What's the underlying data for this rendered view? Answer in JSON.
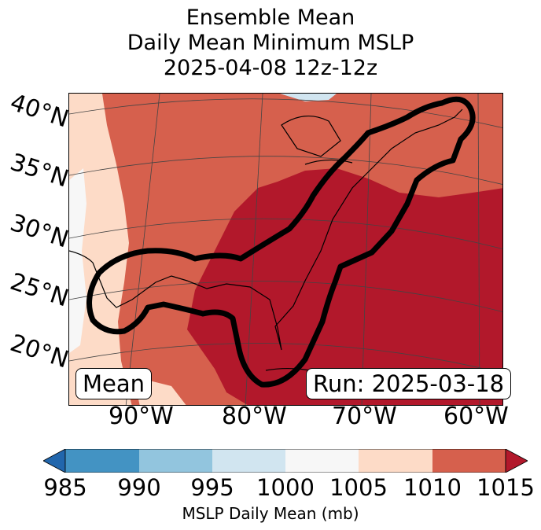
{
  "title": {
    "line1": "Ensemble Mean",
    "line2": "Daily Mean Minimum MSLP",
    "line3": "2025-04-08 12z-12z"
  },
  "map": {
    "lat_labels": [
      "40°N",
      "35°N",
      "30°N",
      "25°N",
      "20°N"
    ],
    "lon_labels": [
      "90°W",
      "80°W",
      "70°W",
      "60°W"
    ],
    "badge_left": "Mean",
    "badge_right": "Run: 2025-03-18"
  },
  "colorbar": {
    "ticks": [
      "985",
      "990",
      "995",
      "1000",
      "1005",
      "1010",
      "1015"
    ],
    "label": "MSLP Daily Mean (mb)",
    "colors": [
      "#2166ac",
      "#4393c3",
      "#92c5de",
      "#d1e5f0",
      "#f7f7f7",
      "#fddbc7",
      "#d6604d",
      "#b2182b"
    ]
  }
}
